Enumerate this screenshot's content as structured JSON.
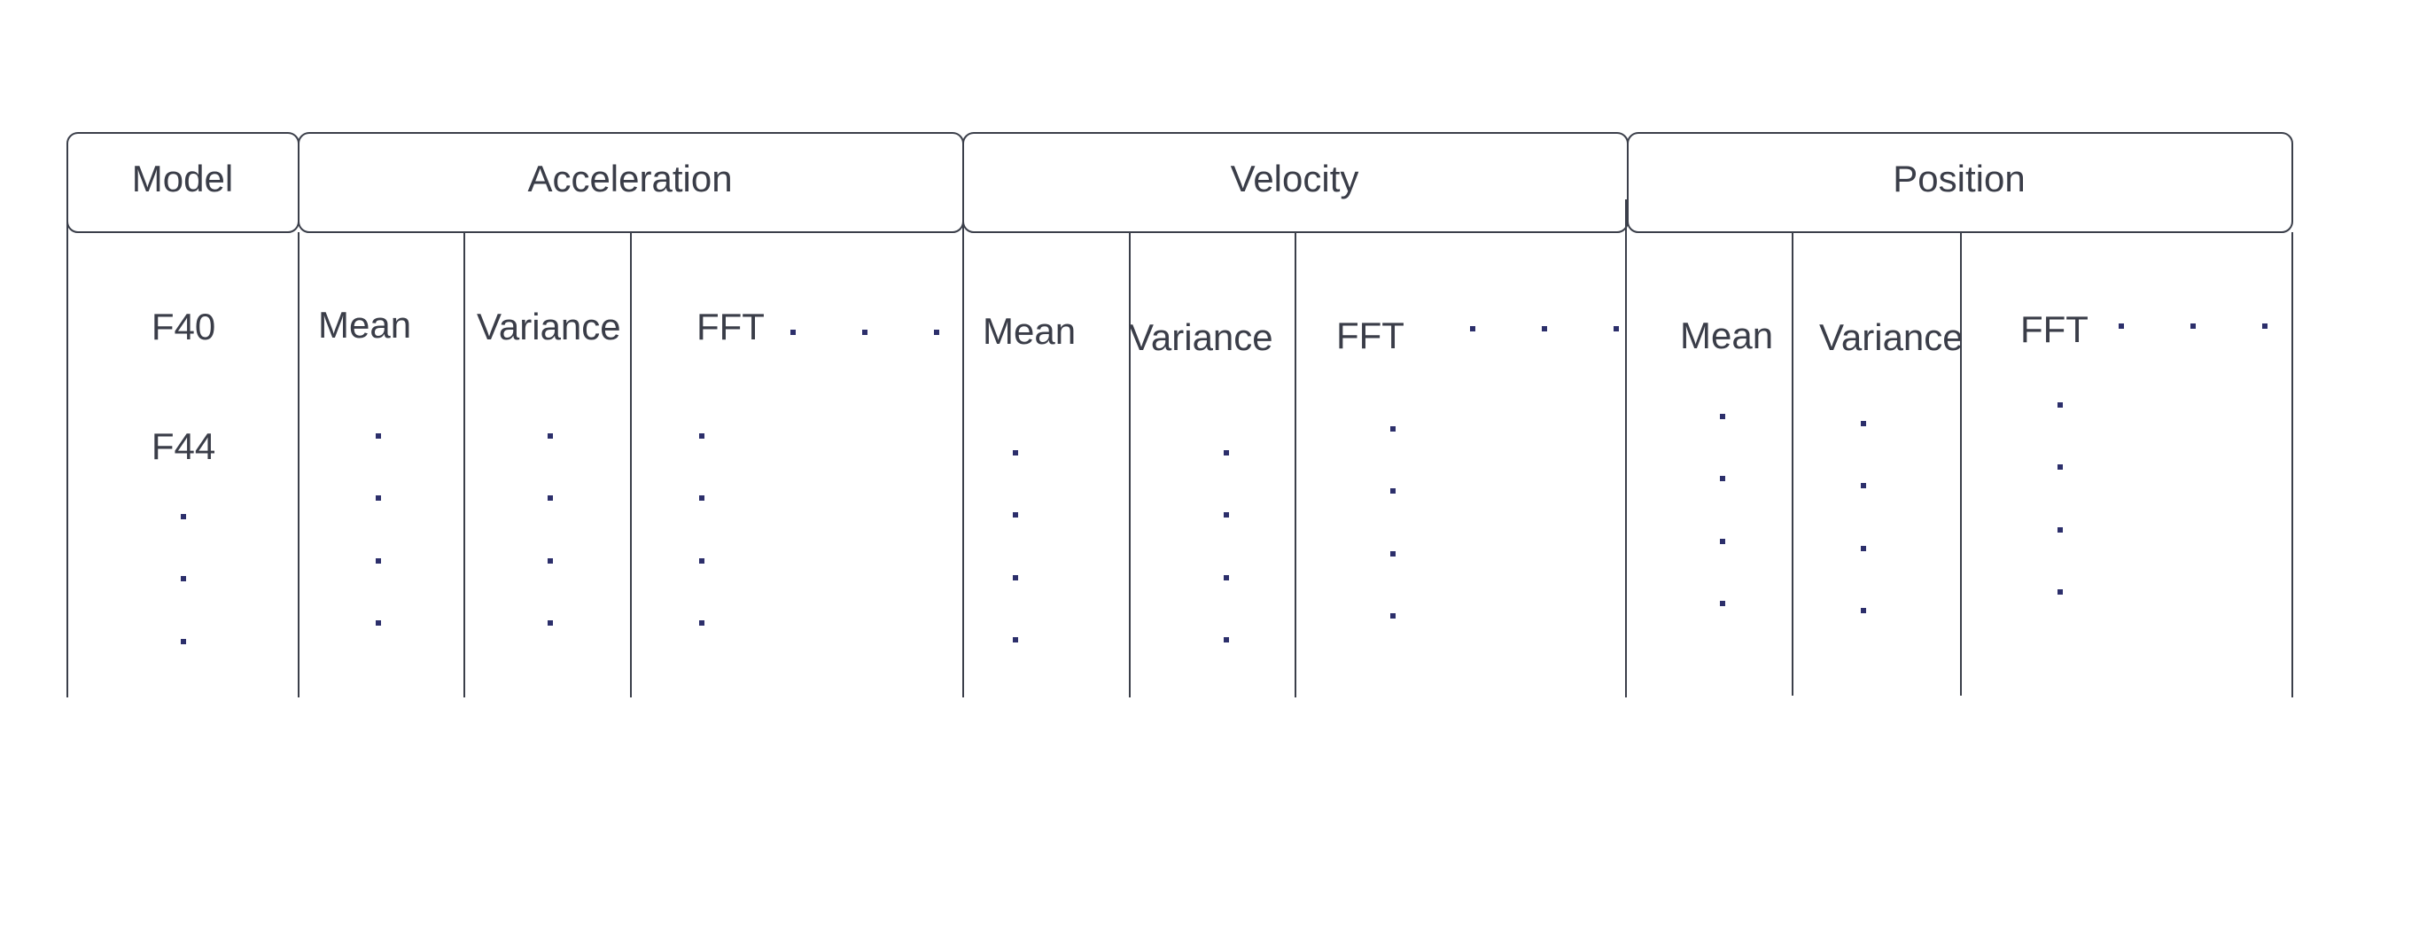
{
  "headers": {
    "model": "Model",
    "acceleration": "Acceleration",
    "velocity": "Velocity",
    "position": "Position"
  },
  "rows": {
    "model_first": "F40",
    "model_second": "F44"
  },
  "subheaders": {
    "acceleration": [
      "Mean",
      "Variance",
      "FFT"
    ],
    "velocity": [
      "Mean",
      "Variance",
      "FFT"
    ],
    "position": [
      "Mean",
      "Variance",
      "FFT"
    ]
  },
  "colors": {
    "line": "#3b3f4a",
    "text": "#3a3d48",
    "dot": "#2c2f6b"
  }
}
